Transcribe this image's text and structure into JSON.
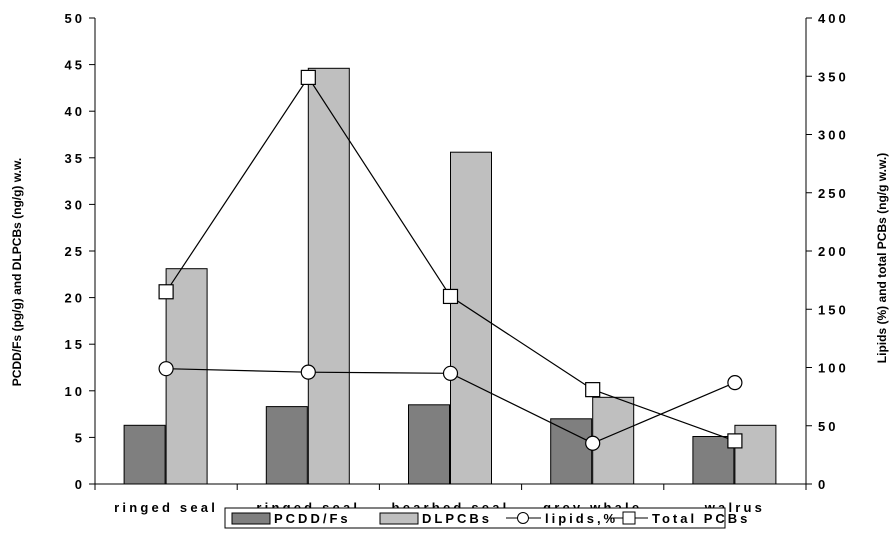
{
  "chart_data": {
    "type": "bar",
    "categories": [
      "ringed seal",
      "ringed seal",
      "bearbed seal",
      "grey whale",
      "walrus"
    ],
    "series": [
      {
        "name": "PCDD/Fs",
        "kind": "bar",
        "axis": "left",
        "color": "#7f7f7f",
        "values": [
          6.3,
          8.3,
          8.5,
          7.0,
          5.1
        ]
      },
      {
        "name": "DLPCBs",
        "kind": "bar",
        "axis": "left",
        "color": "#bfbfbf",
        "values": [
          23.1,
          44.6,
          35.6,
          9.3,
          6.3
        ]
      },
      {
        "name": "lipids,%",
        "kind": "line",
        "marker": "circle",
        "axis": "right",
        "color": "#000000",
        "values": [
          99,
          96,
          95,
          35,
          87
        ]
      },
      {
        "name": "Total PCBs",
        "kind": "line",
        "marker": "square",
        "axis": "right",
        "color": "#000000",
        "values": [
          165,
          349,
          161,
          81,
          37
        ]
      }
    ],
    "ylabel": "PCDD/Fs (pg/g) and DLPCBs (ng/g) w.w.",
    "ylabel_right": "Lipids (%) and total PCBs (ng/g w.w.)",
    "ylim": [
      0,
      50
    ],
    "ylim_right": [
      0,
      400
    ],
    "yticks": [
      "0",
      "5",
      "10",
      "15",
      "20",
      "25",
      "30",
      "35",
      "40",
      "45",
      "50"
    ],
    "yticks_right": [
      "0",
      "50",
      "100",
      "150",
      "200",
      "250",
      "300",
      "350",
      "400"
    ],
    "grid": false,
    "legend_position": "bottom"
  }
}
